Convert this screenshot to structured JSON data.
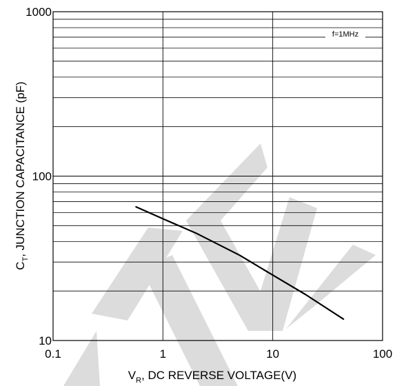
{
  "chart_data": {
    "type": "line",
    "x_scale": "log",
    "y_scale": "log",
    "xlim": [
      0.1,
      100
    ],
    "ylim": [
      10,
      1000
    ],
    "x_ticks": [
      "0.1",
      "1",
      "10",
      "100"
    ],
    "y_ticks": [
      "10",
      "100",
      "1000"
    ],
    "grid": "major-x, minor-y",
    "ylabel_main": "C",
    "ylabel_sub": "T",
    "ylabel_rest": ", JUNCTION CAPACITANCE (pF)",
    "xlabel_main": "V",
    "xlabel_sub": "R",
    "xlabel_rest": ", DC REVERSE VOLTAGE(V)",
    "annotation": "f=1MHz",
    "watermark": "ST",
    "series": [
      {
        "color": "#000000",
        "x": [
          0.57,
          1,
          2,
          5,
          10,
          20,
          44
        ],
        "y": [
          65,
          55,
          45,
          33,
          25,
          19,
          13.5
        ]
      }
    ]
  }
}
